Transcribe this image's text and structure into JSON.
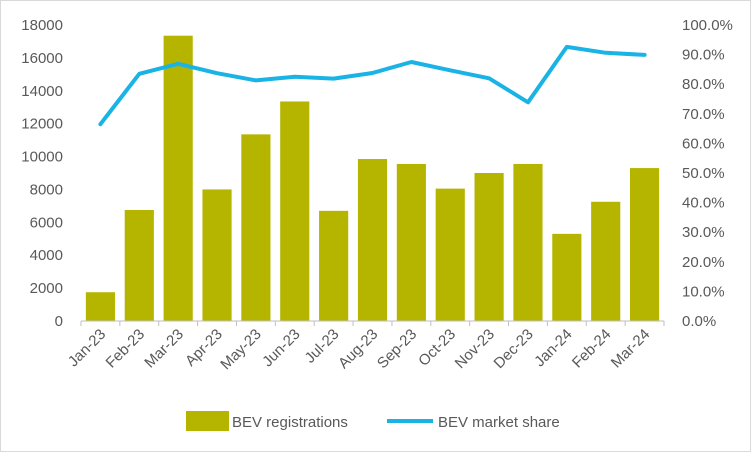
{
  "chart_data": {
    "type": "bar",
    "categories": [
      "Jan-23",
      "Feb-23",
      "Mar-23",
      "Apr-23",
      "May-23",
      "Jun-23",
      "Jul-23",
      "Aug-23",
      "Sep-23",
      "Oct-23",
      "Nov-23",
      "Dec-23",
      "Jan-24",
      "Feb-24",
      "Mar-24"
    ],
    "series": [
      {
        "name": "BEV registrations",
        "type": "bar",
        "axis": "left",
        "color": "#b5b500",
        "values": [
          1750,
          6750,
          17350,
          8000,
          11350,
          13350,
          6700,
          9850,
          9550,
          8050,
          9000,
          9550,
          5300,
          7250,
          9300
        ]
      },
      {
        "name": "BEV market share",
        "type": "line",
        "axis": "right",
        "color": "#1ab3e6",
        "values": [
          66.5,
          83.5,
          86.9,
          83.7,
          81.3,
          82.5,
          81.9,
          83.8,
          87.5,
          84.7,
          82.0,
          73.9,
          92.6,
          90.6,
          89.9
        ]
      }
    ],
    "y_left": {
      "ylim": [
        0,
        18000
      ],
      "ticks": [
        "0",
        "2000",
        "4000",
        "6000",
        "8000",
        "10000",
        "12000",
        "14000",
        "16000",
        "18000"
      ]
    },
    "y_right": {
      "ylim": [
        0,
        100
      ],
      "ticks": [
        "0.0%",
        "10.0%",
        "20.0%",
        "30.0%",
        "40.0%",
        "50.0%",
        "60.0%",
        "70.0%",
        "80.0%",
        "90.0%",
        "100.0%"
      ]
    },
    "title": "",
    "xlabel": "",
    "ylabel": "",
    "grid": false,
    "legend": "bottom-center"
  }
}
